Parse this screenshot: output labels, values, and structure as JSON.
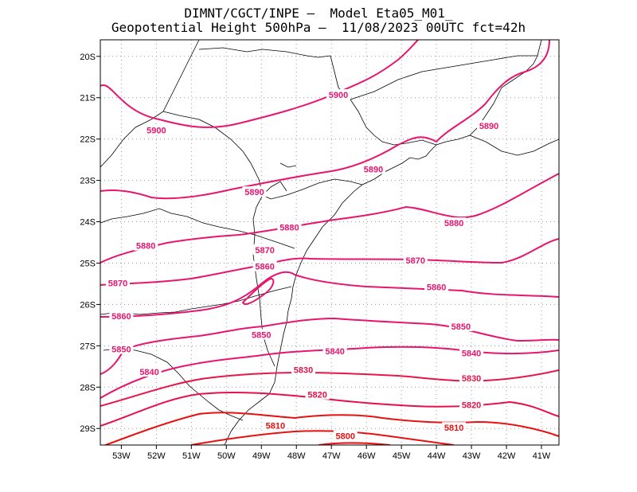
{
  "title": {
    "line1": "DIMNT/CGCT/INPE –  Model Eta05_M01_",
    "line2": "Geopotential Height 500hPa –  11/08/2023 00UTC fct=42h"
  },
  "axes": {
    "lon_labels": [
      "53W",
      "52W",
      "51W",
      "50W",
      "49W",
      "48W",
      "47W",
      "46W",
      "45W",
      "44W",
      "43W",
      "42W",
      "41W"
    ],
    "lon_values": [
      -53,
      -52,
      -51,
      -50,
      -49,
      -48,
      -47,
      -46,
      -45,
      -44,
      -43,
      -42,
      -41
    ],
    "lat_labels": [
      "20S",
      "21S",
      "22S",
      "23S",
      "24S",
      "25S",
      "26S",
      "27S",
      "28S",
      "29S"
    ],
    "lat_values": [
      -20,
      -21,
      -22,
      -23,
      -24,
      -25,
      -26,
      -27,
      -28,
      -29
    ],
    "lon_range": [
      -53.6,
      -40.5
    ],
    "lat_range": [
      -29.4,
      -19.6
    ]
  },
  "colors": {
    "contour_high": "#e8156e",
    "contour_low": "#e81010",
    "coast": "#000000",
    "grid": "#9a9a9a"
  },
  "contour_labels": [
    {
      "text": "5900",
      "lon": -46.8,
      "lat": -20.95,
      "color": "#e8156e"
    },
    {
      "text": "5900",
      "lon": -52.0,
      "lat": -21.8,
      "color": "#e8156e"
    },
    {
      "text": "5890",
      "lon": -49.2,
      "lat": -23.3,
      "color": "#e8156e"
    },
    {
      "text": "5890",
      "lon": -45.8,
      "lat": -22.75,
      "color": "#e8156e"
    },
    {
      "text": "5890",
      "lon": -42.5,
      "lat": -21.7,
      "color": "#e8156e"
    },
    {
      "text": "5880",
      "lon": -52.3,
      "lat": -24.6,
      "color": "#e8156e"
    },
    {
      "text": "5880",
      "lon": -48.2,
      "lat": -24.15,
      "color": "#e8156e"
    },
    {
      "text": "5880",
      "lon": -43.5,
      "lat": -24.05,
      "color": "#e8156e"
    },
    {
      "text": "5870",
      "lon": -53.1,
      "lat": -25.5,
      "color": "#e8156e"
    },
    {
      "text": "5870",
      "lon": -48.9,
      "lat": -24.7,
      "color": "#e8156e"
    },
    {
      "text": "5870",
      "lon": -44.6,
      "lat": -24.95,
      "color": "#e8156e"
    },
    {
      "text": "5860",
      "lon": -48.9,
      "lat": -25.1,
      "color": "#e8156e"
    },
    {
      "text": "5860",
      "lon": -53.0,
      "lat": -26.3,
      "color": "#e8156e"
    },
    {
      "text": "5860",
      "lon": -44.0,
      "lat": -25.6,
      "color": "#e8156e"
    },
    {
      "text": "5850",
      "lon": -49.0,
      "lat": -26.75,
      "color": "#e8156e"
    },
    {
      "text": "5850",
      "lon": -43.3,
      "lat": -26.55,
      "color": "#e8156e"
    },
    {
      "text": "5850",
      "lon": -53.0,
      "lat": -27.1,
      "color": "#e8156e"
    },
    {
      "text": "5840",
      "lon": -46.9,
      "lat": -27.15,
      "color": "#e8156e"
    },
    {
      "text": "5840",
      "lon": -52.2,
      "lat": -27.65,
      "color": "#e8156e"
    },
    {
      "text": "5840",
      "lon": -43.0,
      "lat": -27.2,
      "color": "#e8156e"
    },
    {
      "text": "5830",
      "lon": -47.8,
      "lat": -27.6,
      "color": "#e8154a"
    },
    {
      "text": "5830",
      "lon": -43.0,
      "lat": -27.8,
      "color": "#e8154a"
    },
    {
      "text": "5820",
      "lon": -47.4,
      "lat": -28.2,
      "color": "#e8104a"
    },
    {
      "text": "5820",
      "lon": -43.0,
      "lat": -28.45,
      "color": "#e8104a"
    },
    {
      "text": "5810",
      "lon": -48.6,
      "lat": -28.95,
      "color": "#e81010"
    },
    {
      "text": "5810",
      "lon": -43.5,
      "lat": -29.0,
      "color": "#e81010"
    },
    {
      "text": "5800",
      "lon": -46.6,
      "lat": -29.2,
      "color": "#e81010"
    }
  ]
}
